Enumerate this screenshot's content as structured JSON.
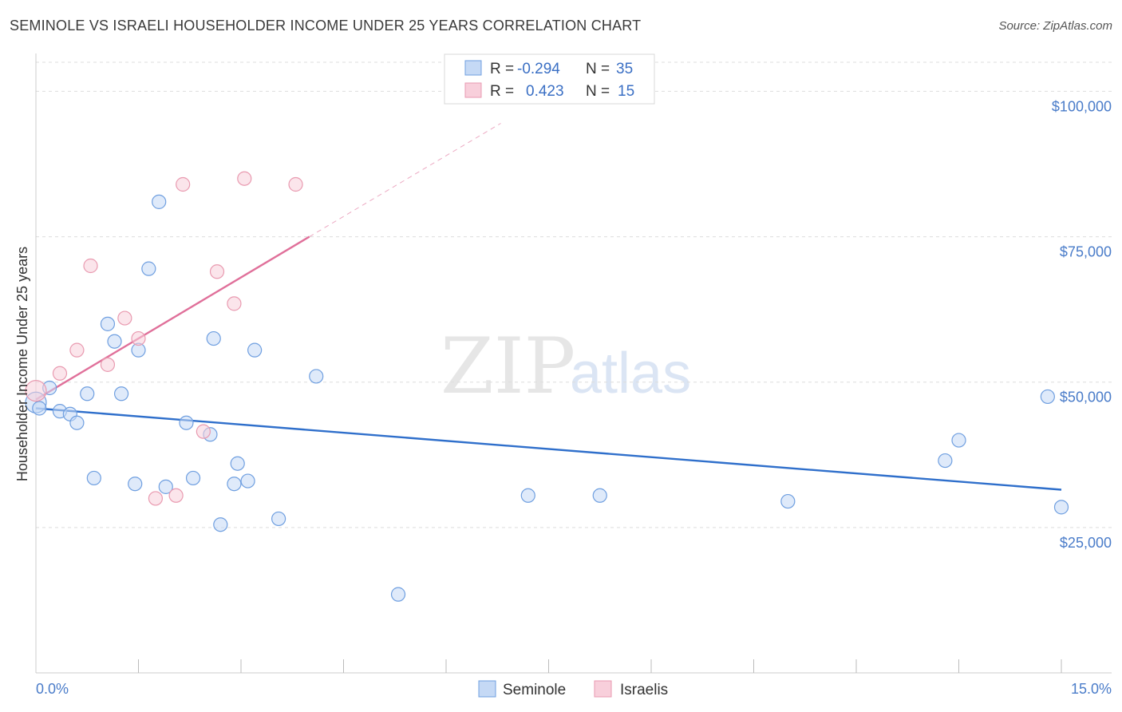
{
  "chart_data": {
    "type": "scatter",
    "title": "SEMINOLE VS ISRAELI HOUSEHOLDER INCOME UNDER 25 YEARS CORRELATION CHART",
    "source": "Source: ZipAtlas.com",
    "ylabel": "Householder Income Under 25 years",
    "xlim": [
      0,
      15
    ],
    "ylim": [
      0,
      105000
    ],
    "y_ticks": [
      {
        "value": 25000,
        "label": "$25,000"
      },
      {
        "value": 50000,
        "label": "$50,000"
      },
      {
        "value": 75000,
        "label": "$75,000"
      },
      {
        "value": 100000,
        "label": "$100,000"
      }
    ],
    "x_tick_labels": {
      "min": "0.0%",
      "max": "15.0%"
    },
    "x_minor_ticks": [
      1.5,
      3.0,
      4.5,
      6.0,
      7.5,
      9.0,
      10.5,
      12.0,
      13.5,
      15.0
    ],
    "legend": {
      "rows": [
        {
          "r_label": "R =",
          "r_value": "-0.294",
          "n_label": "N =",
          "n_value": "35",
          "series": "Seminole"
        },
        {
          "r_label": "R =",
          "r_value": "0.423",
          "n_label": "N =",
          "n_value": "15",
          "series": "Israelis"
        }
      ]
    },
    "watermark": {
      "zip": "ZIP",
      "atlas": "atlas"
    },
    "series": [
      {
        "name": "Seminole",
        "color": "#6f9fe0",
        "fill": "#c5d9f5",
        "line_color": "#2f6fcb",
        "trend": {
          "x0": 0.0,
          "y0": 45500,
          "x1": 15.0,
          "y1": 31500
        },
        "points": [
          [
            0.0,
            46500
          ],
          [
            0.2,
            49000
          ],
          [
            0.35,
            45000
          ],
          [
            0.5,
            44500
          ],
          [
            0.6,
            43000
          ],
          [
            0.75,
            48000
          ],
          [
            0.85,
            33500
          ],
          [
            1.05,
            60000
          ],
          [
            1.15,
            57000
          ],
          [
            1.25,
            48000
          ],
          [
            1.45,
            32500
          ],
          [
            1.5,
            55500
          ],
          [
            1.65,
            69500
          ],
          [
            1.8,
            81000
          ],
          [
            1.9,
            32000
          ],
          [
            2.2,
            43000
          ],
          [
            2.3,
            33500
          ],
          [
            2.55,
            41000
          ],
          [
            2.6,
            57500
          ],
          [
            2.7,
            25500
          ],
          [
            2.9,
            32500
          ],
          [
            2.95,
            36000
          ],
          [
            3.1,
            33000
          ],
          [
            3.2,
            55500
          ],
          [
            3.55,
            26500
          ],
          [
            4.1,
            51000
          ],
          [
            5.3,
            13500
          ],
          [
            7.2,
            30500
          ],
          [
            8.25,
            30500
          ],
          [
            11.0,
            29500
          ],
          [
            13.3,
            36500
          ],
          [
            13.5,
            40000
          ],
          [
            14.8,
            47500
          ],
          [
            15.0,
            28500
          ],
          [
            0.05,
            45500
          ]
        ]
      },
      {
        "name": "Israelis",
        "color": "#e99ab0",
        "fill": "#f8cfdb",
        "line_color": "#e0709a",
        "trend": {
          "x0": 0.0,
          "y0": 47000,
          "x1": 4.0,
          "y1": 75000
        },
        "trend_dashed_to": {
          "x": 6.8,
          "y": 94500
        },
        "points": [
          [
            0.0,
            48500
          ],
          [
            0.35,
            51500
          ],
          [
            0.6,
            55500
          ],
          [
            0.8,
            70000
          ],
          [
            1.05,
            53000
          ],
          [
            1.3,
            61000
          ],
          [
            1.5,
            57500
          ],
          [
            1.75,
            30000
          ],
          [
            2.05,
            30500
          ],
          [
            2.15,
            84000
          ],
          [
            2.45,
            41500
          ],
          [
            2.65,
            69000
          ],
          [
            2.9,
            63500
          ],
          [
            3.05,
            85000
          ],
          [
            3.8,
            84000
          ]
        ]
      }
    ],
    "bottom_legend": [
      "Seminole",
      "Israelis"
    ]
  }
}
